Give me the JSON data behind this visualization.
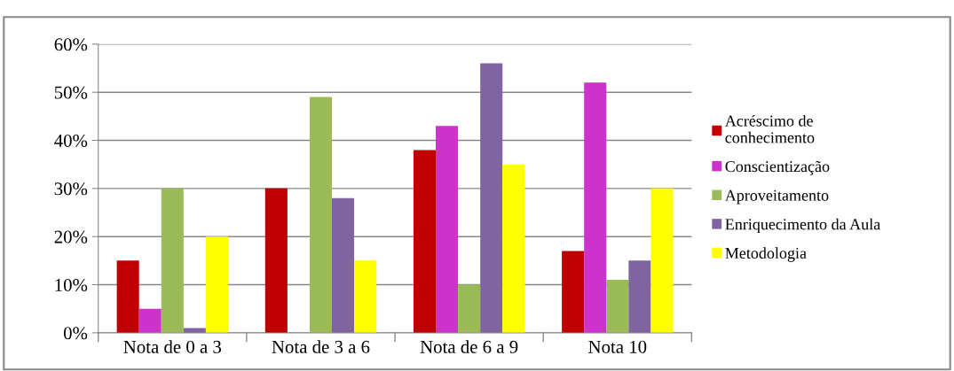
{
  "chart_data": {
    "type": "bar",
    "categories": [
      "Nota de 0 a 3",
      "Nota de 3 a 6",
      "Nota de 6 a 9",
      "Nota 10"
    ],
    "series": [
      {
        "name": "Acréscimo de\nconhecimento",
        "color": "#c00000",
        "values": [
          15,
          30,
          38,
          17
        ]
      },
      {
        "name": "Conscientização",
        "color": "#cc33cc",
        "values": [
          5,
          0,
          43,
          52
        ]
      },
      {
        "name": "Aproveitamento",
        "color": "#9bbb59",
        "values": [
          30,
          49,
          10,
          11
        ]
      },
      {
        "name": "Enriquecimento da Aula",
        "color": "#8064a2",
        "values": [
          1,
          28,
          56,
          15
        ]
      },
      {
        "name": "Metodologia",
        "color": "#ffff00",
        "values": [
          20,
          15,
          35,
          30
        ]
      }
    ],
    "ylim": [
      0,
      60
    ],
    "yticks": [
      {
        "value": 0,
        "label": "0%"
      },
      {
        "value": 10,
        "label": "10%"
      },
      {
        "value": 20,
        "label": "20%"
      },
      {
        "value": 30,
        "label": "30%"
      },
      {
        "value": 40,
        "label": "40%"
      },
      {
        "value": 50,
        "label": "50%"
      },
      {
        "value": 60,
        "label": "60%"
      }
    ],
    "grid": "y",
    "legend": "right"
  }
}
